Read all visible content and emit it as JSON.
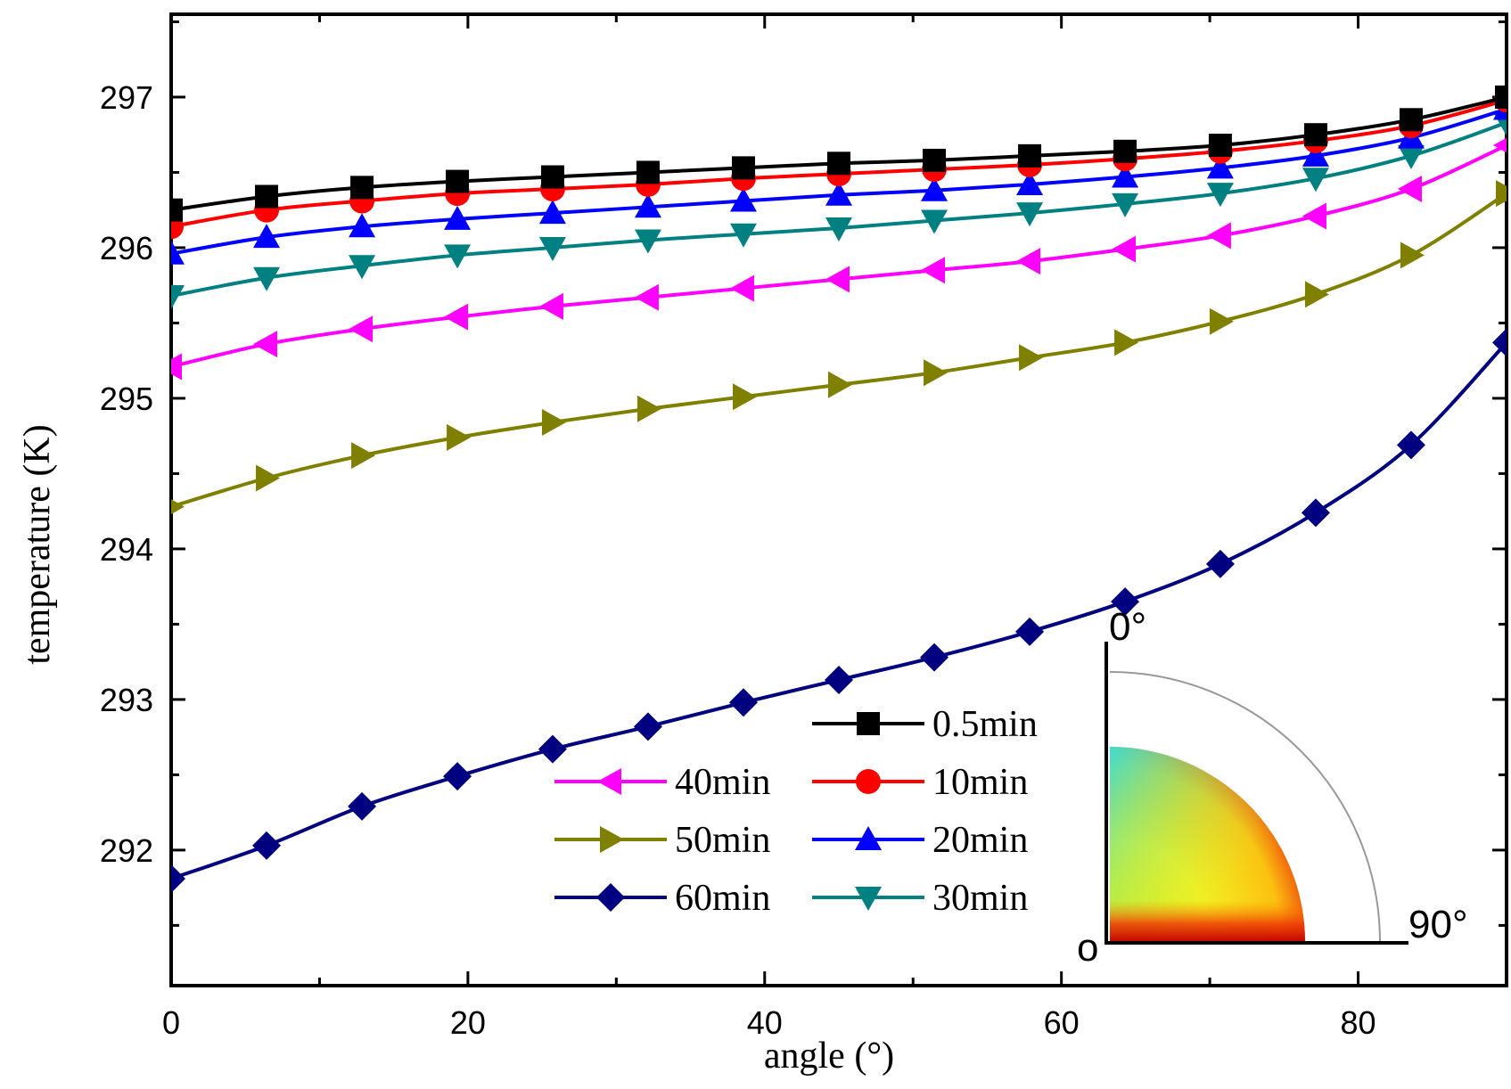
{
  "chart_data": {
    "type": "line",
    "title": "",
    "xlabel": "angle (°)",
    "ylabel": "temperature (K)",
    "xlim": [
      0,
      90
    ],
    "ylim": [
      291.1,
      297.55
    ],
    "x_ticks": [
      0,
      20,
      40,
      60,
      80
    ],
    "x_tick_labels": [
      "0",
      "20",
      "40",
      "60",
      "80"
    ],
    "y_ticks": [
      292,
      293,
      294,
      295,
      296,
      297
    ],
    "y_tick_labels": [
      "292",
      "293",
      "294",
      "295",
      "296",
      "297"
    ],
    "grid": false,
    "legend_position": "bottom-center",
    "x": [
      0,
      6.43,
      12.86,
      19.29,
      25.71,
      32.14,
      38.57,
      45,
      51.43,
      57.86,
      64.29,
      70.71,
      77.14,
      83.57,
      90
    ],
    "series": [
      {
        "name": "0.5min",
        "color": "#000000",
        "marker": "square",
        "values": [
          296.25,
          296.34,
          296.4,
          296.44,
          296.47,
          296.5,
          296.53,
          296.56,
          296.58,
          296.61,
          296.64,
          296.68,
          296.75,
          296.85,
          297.0
        ]
      },
      {
        "name": "10min",
        "color": "#ff0000",
        "marker": "circle",
        "values": [
          296.14,
          296.25,
          296.31,
          296.36,
          296.39,
          296.42,
          296.46,
          296.49,
          296.52,
          296.55,
          296.59,
          296.64,
          296.71,
          296.81,
          296.98
        ]
      },
      {
        "name": "20min",
        "color": "#0000ff",
        "marker": "triangle-up",
        "values": [
          295.96,
          296.07,
          296.14,
          296.19,
          296.23,
          296.27,
          296.31,
          296.35,
          296.38,
          296.42,
          296.47,
          296.53,
          296.61,
          296.73,
          296.92
        ]
      },
      {
        "name": "30min",
        "color": "#008080",
        "marker": "triangle-down",
        "values": [
          295.68,
          295.8,
          295.88,
          295.95,
          296.0,
          296.05,
          296.09,
          296.13,
          296.18,
          296.23,
          296.29,
          296.36,
          296.46,
          296.61,
          296.83
        ]
      },
      {
        "name": "40min",
        "color": "#ff00ff",
        "marker": "triangle-left",
        "values": [
          295.21,
          295.36,
          295.46,
          295.54,
          295.61,
          295.67,
          295.73,
          295.79,
          295.85,
          295.91,
          295.99,
          296.08,
          296.21,
          296.39,
          296.68
        ]
      },
      {
        "name": "50min",
        "color": "#808000",
        "marker": "triangle-right",
        "values": [
          294.28,
          294.47,
          294.62,
          294.74,
          294.84,
          294.93,
          295.01,
          295.09,
          295.17,
          295.27,
          295.37,
          295.51,
          295.69,
          295.95,
          296.36
        ]
      },
      {
        "name": "60min",
        "color": "#000080",
        "marker": "diamond",
        "values": [
          291.81,
          292.03,
          292.29,
          292.49,
          292.67,
          292.82,
          292.98,
          293.13,
          293.28,
          293.45,
          293.65,
          293.9,
          294.24,
          294.69,
          295.37
        ]
      }
    ],
    "legend_columns": [
      [
        "40min",
        "50min",
        "60min"
      ],
      [
        "0.5min",
        "10min",
        "20min",
        "30min"
      ]
    ],
    "inset": {
      "description": "quarter-circle temperature distribution",
      "label_top": "0°",
      "label_right": "90°",
      "label_origin": "o"
    }
  }
}
